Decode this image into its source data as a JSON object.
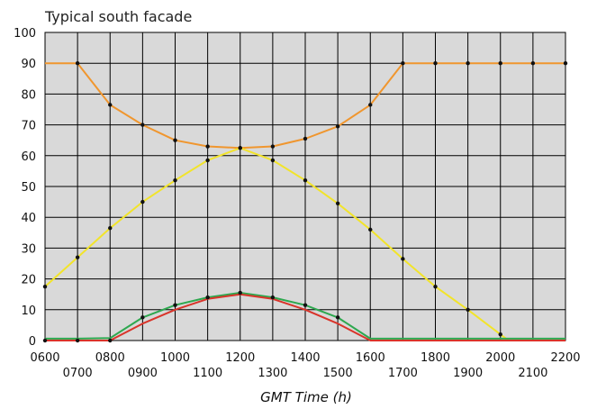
{
  "chart_data": {
    "type": "line",
    "title": "Typical south facade",
    "xlabel": "GMT Time (h)",
    "ylabel": "",
    "ylim": [
      0,
      100
    ],
    "xlim": [
      6,
      22
    ],
    "grid": true,
    "legend": "none",
    "plot_background": "#d9d9d9",
    "yticks": [
      "0",
      "10",
      "20",
      "30",
      "40",
      "50",
      "60",
      "70",
      "80",
      "90",
      "100"
    ],
    "xticks_upper": [
      "0600",
      "0800",
      "1000",
      "1200",
      "1400",
      "1600",
      "1800",
      "2000",
      "2200"
    ],
    "xticks_lower": [
      "0700",
      "0900",
      "1100",
      "1300",
      "1500",
      "1700",
      "1900",
      "2100"
    ],
    "series": [
      {
        "color": "#f0962e",
        "x": [
          6,
          7,
          8,
          9,
          10,
          11,
          12,
          13,
          14,
          15,
          16,
          17,
          18,
          19,
          20,
          21,
          22
        ],
        "y": [
          90,
          90,
          76.5,
          70,
          65,
          63,
          62.5,
          63,
          65.5,
          69.5,
          76.5,
          90,
          90,
          90,
          90,
          90,
          90
        ],
        "points": [
          7,
          8,
          9,
          10,
          11,
          12,
          13,
          14,
          15,
          16,
          17,
          18,
          19,
          20,
          21,
          22
        ]
      },
      {
        "color": "#f2e42a",
        "x": [
          6,
          7,
          8,
          9,
          10,
          11,
          12,
          13,
          14,
          15,
          16,
          17,
          18,
          19,
          20,
          20.25,
          21,
          22
        ],
        "y": [
          17.5,
          27,
          36.5,
          45,
          52,
          58.5,
          62.5,
          58.5,
          52,
          44.5,
          36,
          26.5,
          17.5,
          10,
          2,
          0,
          0,
          0
        ],
        "points": [
          6,
          7,
          8,
          9,
          10,
          11,
          12,
          13,
          14,
          15,
          16,
          17,
          18,
          19,
          20
        ]
      },
      {
        "color": "#2ea84f",
        "x": [
          6,
          7,
          8,
          9,
          10,
          11,
          12,
          13,
          14,
          15,
          16,
          17,
          18,
          19,
          20,
          21,
          22
        ],
        "y": [
          0.6,
          0.6,
          0.8,
          7.5,
          11.5,
          14,
          15.5,
          14,
          11.5,
          7.5,
          0.6,
          0.6,
          0.6,
          0.6,
          0.6,
          0.6,
          0.6
        ],
        "points": [
          9,
          10,
          11,
          12,
          13,
          14,
          15
        ]
      },
      {
        "color": "#d9342a",
        "x": [
          6,
          7,
          8,
          9,
          10,
          11,
          12,
          13,
          14,
          15,
          16,
          17,
          18,
          19,
          20,
          21,
          22
        ],
        "y": [
          0,
          0,
          0,
          5.5,
          10,
          13.5,
          15,
          13.5,
          10,
          5.5,
          0,
          0,
          0,
          0,
          0,
          0,
          0
        ],
        "points": [
          6,
          7,
          8
        ]
      }
    ]
  }
}
